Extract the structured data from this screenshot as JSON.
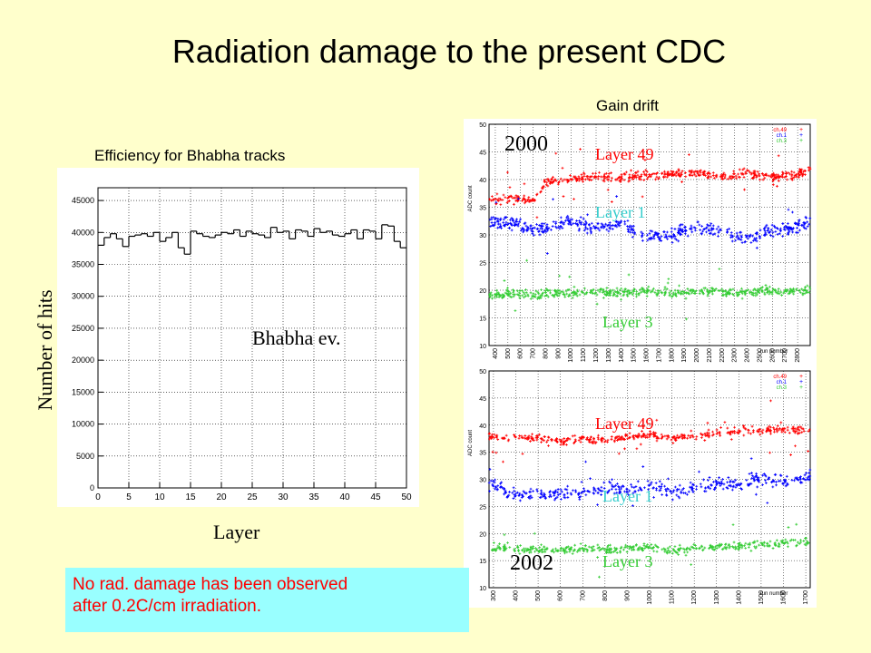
{
  "title": "Radiation damage to the present CDC",
  "efficiency_caption": "Efficiency for Bhabha tracks",
  "gain_caption": "Gain drift",
  "note": {
    "line1": "No rad. damage has been observed",
    "line2": "after 0.2C/cm irradiation."
  },
  "colors": {
    "background": "#ffffcc",
    "note_background": "#99ffff",
    "note_text": "#ff0000",
    "layer49": "#ff0000",
    "layer1": "#0000ff",
    "layer3": "#33cc33",
    "layer1_label": "#33cccc"
  },
  "chart_data": [
    {
      "type": "bar",
      "xlabel": "Layer",
      "ylabel": "Number of hits",
      "annotation": "Bhabha ev.",
      "xlim": [
        0,
        50
      ],
      "ylim": [
        0,
        47000
      ],
      "xticks": [
        0,
        5,
        10,
        15,
        20,
        25,
        30,
        35,
        40,
        45,
        50
      ],
      "yticks": [
        0,
        5000,
        10000,
        15000,
        20000,
        25000,
        30000,
        35000,
        40000,
        45000
      ],
      "grid": true,
      "values": [
        38000,
        39200,
        39800,
        39000,
        37800,
        39400,
        39600,
        39800,
        39400,
        40000,
        38600,
        39200,
        40000,
        37600,
        36600,
        40200,
        39800,
        39400,
        39200,
        39600,
        40000,
        39800,
        40400,
        39400,
        40200,
        39800,
        39600,
        39200,
        40800,
        40000,
        40200,
        39000,
        40400,
        40200,
        39400,
        40600,
        40000,
        40200,
        39600,
        39400,
        39800,
        40400,
        39000,
        40400,
        40200,
        39000,
        41200,
        41000,
        38600,
        37600
      ]
    },
    {
      "type": "scatter",
      "year_label": "2000",
      "ylabel": "ADC count",
      "xlabel": "run number",
      "xlim": [
        350,
        2900
      ],
      "ylim": [
        10,
        50
      ],
      "xticks": [
        400,
        500,
        600,
        700,
        800,
        900,
        1000,
        1100,
        1200,
        1300,
        1400,
        1500,
        1600,
        1700,
        1800,
        1900,
        2000,
        2100,
        2200,
        2300,
        2400,
        2500,
        2600,
        2700,
        2800
      ],
      "yticks": [
        10,
        15,
        20,
        25,
        30,
        35,
        40,
        45,
        50
      ],
      "grid": true,
      "legend": [
        "ch.49",
        "ch.1",
        "ch.3"
      ],
      "series": [
        {
          "name": "Layer 49",
          "x": [
            400,
            550,
            700,
            800,
            1000,
            1200,
            1400,
            1600,
            1800,
            2000,
            2200,
            2400,
            2600,
            2800,
            2900
          ],
          "y": [
            36.5,
            36.8,
            36.0,
            39.5,
            40.0,
            40.5,
            40.3,
            40.8,
            41.0,
            41.2,
            40.5,
            41.0,
            40.5,
            41.0,
            41.8
          ]
        },
        {
          "name": "Layer 1",
          "x": [
            400,
            550,
            700,
            800,
            1000,
            1200,
            1400,
            1500,
            1600,
            1800,
            2000,
            2200,
            2400,
            2600,
            2800,
            2900
          ],
          "y": [
            32.5,
            32.0,
            31.0,
            31.5,
            32.5,
            31.0,
            32.0,
            30.5,
            29.5,
            30.0,
            31.5,
            30.5,
            29.5,
            31.0,
            31.5,
            32.5
          ]
        },
        {
          "name": "Layer 3",
          "x": [
            400,
            550,
            700,
            800,
            1000,
            1200,
            1400,
            1600,
            1800,
            2000,
            2200,
            2400,
            2600,
            2800,
            2900
          ],
          "y": [
            19.0,
            19.5,
            19.0,
            19.5,
            19.5,
            19.8,
            19.5,
            19.8,
            19.6,
            19.7,
            19.6,
            19.5,
            20.0,
            19.8,
            20.0
          ]
        }
      ]
    },
    {
      "type": "scatter",
      "year_label": "2002",
      "ylabel": "ADC count",
      "xlabel": "run number",
      "xlim": [
        280,
        1720
      ],
      "ylim": [
        10,
        50
      ],
      "xticks": [
        300,
        400,
        500,
        600,
        700,
        800,
        900,
        1000,
        1100,
        1200,
        1300,
        1400,
        1500,
        1600,
        1700
      ],
      "yticks": [
        10,
        15,
        20,
        25,
        30,
        35,
        40,
        45,
        50
      ],
      "grid": true,
      "legend": [
        "ch.49",
        "ch.1",
        "ch.3"
      ],
      "series": [
        {
          "name": "Layer 49",
          "x": [
            300,
            400,
            500,
            600,
            700,
            800,
            900,
            1000,
            1100,
            1200,
            1300,
            1400,
            1500,
            1600,
            1700
          ],
          "y": [
            38.0,
            37.5,
            37.8,
            37.0,
            37.5,
            37.2,
            37.8,
            38.2,
            37.5,
            38.0,
            38.5,
            39.0,
            39.0,
            39.3,
            39.0
          ]
        },
        {
          "name": "Layer 1",
          "x": [
            300,
            400,
            500,
            600,
            700,
            800,
            900,
            1000,
            1100,
            1200,
            1300,
            1400,
            1500,
            1600,
            1700
          ],
          "y": [
            29.0,
            27.0,
            27.5,
            27.0,
            27.5,
            28.5,
            28.0,
            29.0,
            27.5,
            28.5,
            29.5,
            29.0,
            30.0,
            29.5,
            30.5
          ]
        },
        {
          "name": "Layer 3",
          "x": [
            300,
            400,
            500,
            600,
            700,
            800,
            900,
            1000,
            1100,
            1200,
            1300,
            1400,
            1500,
            1600,
            1700
          ],
          "y": [
            17.5,
            17.0,
            17.2,
            17.0,
            17.3,
            17.0,
            17.2,
            17.5,
            17.0,
            17.2,
            17.5,
            17.8,
            18.0,
            18.2,
            18.5
          ]
        }
      ]
    }
  ],
  "overlay_labels": {
    "top": [
      "Layer 49",
      "Layer 1",
      "Layer 3"
    ],
    "bottom": [
      "Layer 49",
      "Layer 1",
      "Layer 3"
    ]
  }
}
